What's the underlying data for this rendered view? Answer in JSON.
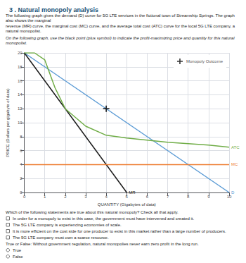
{
  "chart_data": {
    "type": "line",
    "title": "3 . Natural monopoly analysis",
    "body_text": [
      "The following graph gives the demand (D) curve for 5G LTE services in the fictional town of Streamship Springs. The graph also shows the marginal",
      "revenue (MR) curve, the marginal cost (MC) curve, and the average total cost (ATC) curve for the local 5G LTE company, a natural monopolist."
    ],
    "instruction": "On the following graph, use the black point (plus symbol) to indicate the profit-maximizing price and quantity for this natural monopolist.",
    "xlabel": "QUANTITY (Gigabytes of data)",
    "ylabel": "PRICE (Dollars per gigabyte of data)",
    "xlim": [
      0,
      10
    ],
    "ylim": [
      0,
      20
    ],
    "xticks": [
      0,
      1,
      2,
      3,
      4,
      5,
      6,
      7,
      8,
      9,
      10
    ],
    "yticks": [
      0,
      2,
      4,
      6,
      8,
      10,
      12,
      14,
      16,
      18,
      20
    ],
    "grid": true,
    "legend": "upper right",
    "series": [
      {
        "name": "D",
        "type": "line",
        "color": "#5b9bd5",
        "x": [
          0,
          10
        ],
        "values": [
          20,
          0
        ]
      },
      {
        "name": "MR",
        "type": "line",
        "color": "#1a1a1a",
        "x": [
          0,
          5
        ],
        "values": [
          20,
          0
        ]
      },
      {
        "name": "MC",
        "type": "line",
        "color": "#ed7d31",
        "x": [
          0,
          10
        ],
        "values": [
          4,
          4
        ]
      },
      {
        "name": "ATC",
        "type": "line",
        "color": "#70ad47",
        "x": [
          0,
          0.5,
          1,
          1.5,
          2,
          3,
          4,
          5,
          6,
          7,
          8,
          9,
          10
        ],
        "values": [
          20,
          20,
          19,
          15,
          12,
          9.5,
          8.2,
          7.8,
          7.5,
          7.2,
          7.0,
          6.8,
          6.5
        ]
      },
      {
        "name": "Monopoly Outcome",
        "type": "scatter",
        "marker": "plus",
        "color": "#000000",
        "x": [
          4
        ],
        "values": [
          12
        ]
      }
    ],
    "questions": [
      {
        "text": "Which of the following statements are true about this natural monopoly? Check all that apply.",
        "marker": "square",
        "options": [
          "In order for a monopoly to exist in this case, the government must have intervened and created it.",
          "The 5G LTE company is experiencing economies of scale.",
          "It is more efficient on the cost side for one producer to exist in this market rather than a large number of producers.",
          "The 5G LTE company must own a scarce resource."
        ]
      },
      {
        "text": "True or False: Without government regulation, natural monopolies never earn zero profit in the long run.",
        "marker": "circle",
        "options": [
          "True",
          "False"
        ]
      }
    ]
  }
}
